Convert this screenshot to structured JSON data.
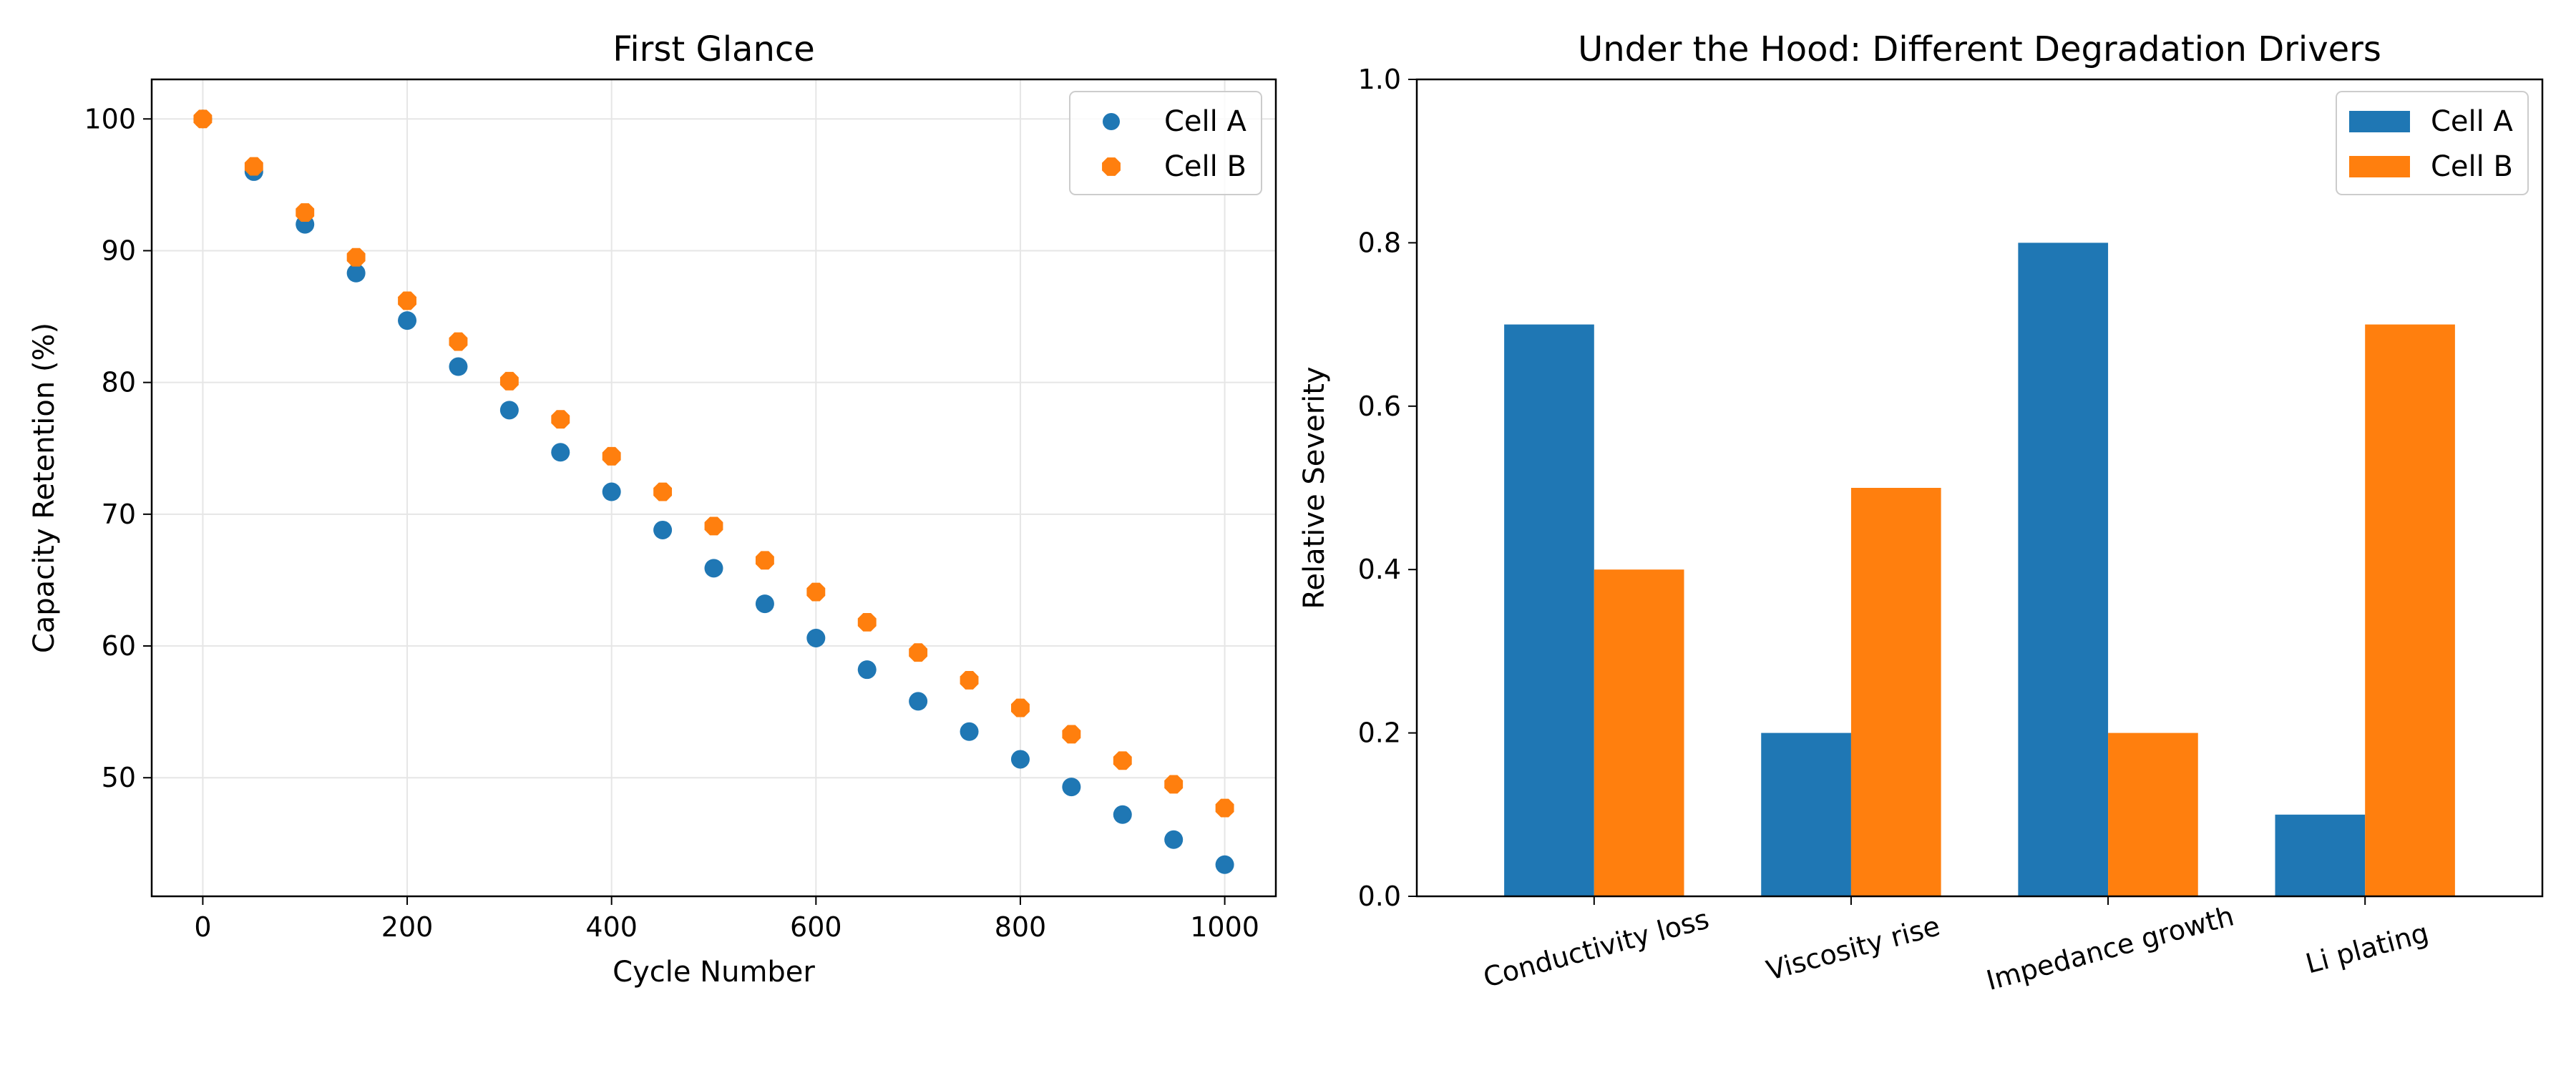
{
  "colors": {
    "cell_a": "#1f77b4",
    "cell_b": "#ff7f0e",
    "grid": "#e6e6e6",
    "axis": "#000000"
  },
  "chart_data": [
    {
      "type": "scatter",
      "title": "First Glance",
      "xlabel": "Cycle Number",
      "ylabel": "Capacity Retention (%)",
      "xlim": [
        -50,
        1050
      ],
      "ylim": [
        41,
        103
      ],
      "xticks": [
        0,
        200,
        400,
        600,
        800,
        1000
      ],
      "yticks": [
        50,
        60,
        70,
        80,
        90,
        100
      ],
      "grid": true,
      "legend_position": "top-right",
      "x": [
        0,
        50,
        100,
        150,
        200,
        250,
        300,
        350,
        400,
        450,
        500,
        550,
        600,
        650,
        700,
        750,
        800,
        850,
        900,
        950,
        1000
      ],
      "series": [
        {
          "name": "Cell A",
          "marker": "circle",
          "values": [
            100.0,
            96.0,
            92.0,
            88.3,
            84.7,
            81.2,
            77.9,
            74.7,
            71.7,
            68.8,
            65.9,
            63.2,
            60.6,
            58.2,
            55.8,
            53.5,
            51.4,
            49.3,
            47.2,
            45.3,
            43.4
          ]
        },
        {
          "name": "Cell B",
          "marker": "octagon",
          "values": [
            100.0,
            96.4,
            92.9,
            89.5,
            86.2,
            83.1,
            80.1,
            77.2,
            74.4,
            71.7,
            69.1,
            66.5,
            64.1,
            61.8,
            59.5,
            57.4,
            55.3,
            53.3,
            51.3,
            49.5,
            47.7
          ]
        }
      ]
    },
    {
      "type": "bar",
      "title": "Under the Hood: Different Degradation Drivers",
      "xlabel": "",
      "ylabel": "Relative Severity",
      "ylim": [
        0,
        1.0
      ],
      "yticks": [
        0.0,
        0.2,
        0.4,
        0.6,
        0.8,
        1.0
      ],
      "grid": false,
      "legend_position": "top-right",
      "categories": [
        "Conductivity loss",
        "Viscosity rise",
        "Impedance growth",
        "Li plating"
      ],
      "series": [
        {
          "name": "Cell A",
          "values": [
            0.7,
            0.2,
            0.8,
            0.1
          ]
        },
        {
          "name": "Cell B",
          "values": [
            0.4,
            0.5,
            0.2,
            0.7
          ]
        }
      ]
    }
  ]
}
